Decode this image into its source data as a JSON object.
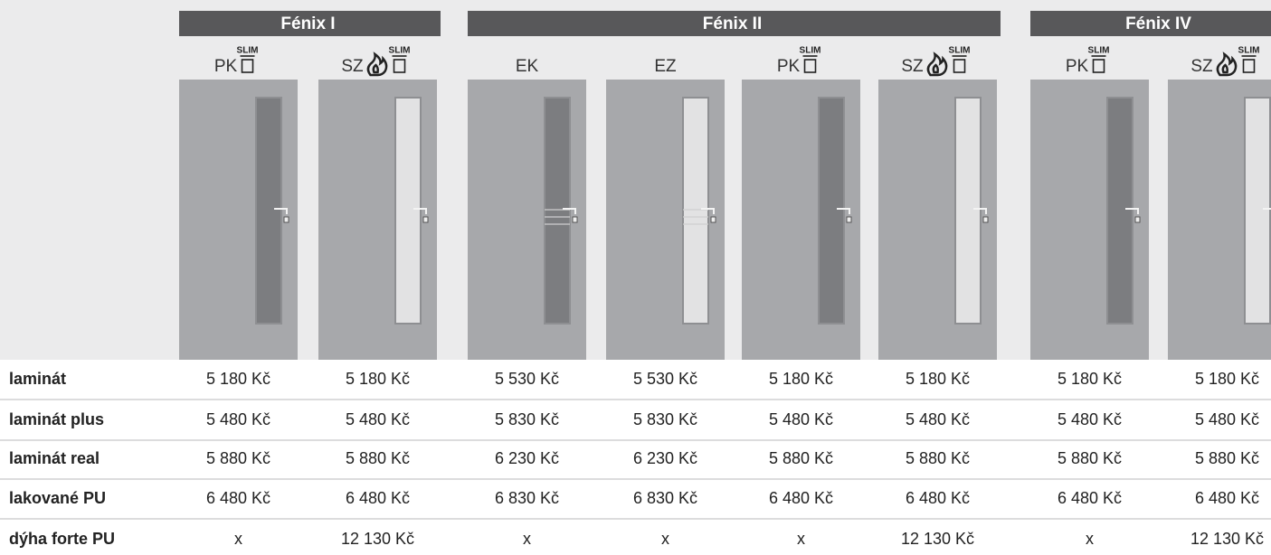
{
  "groups": [
    {
      "title": "Fénix I",
      "columns": [
        {
          "label": "PK",
          "badge": "SLIM",
          "fire": false,
          "glass_color": "#7c7d80"
        },
        {
          "label": "SZ",
          "badge": "SLIM",
          "fire": true,
          "glass_color": "#e2e2e3"
        }
      ]
    },
    {
      "title": "Fénix II",
      "columns": [
        {
          "label": "EK",
          "fire": false,
          "glass_color": "#7c7d80",
          "stripes": true
        },
        {
          "label": "EZ",
          "fire": false,
          "glass_color": "#e2e2e3",
          "stripes": true
        },
        {
          "label": "PK",
          "badge": "SLIM",
          "fire": false,
          "glass_color": "#7c7d80"
        },
        {
          "label": "SZ",
          "badge": "SLIM",
          "fire": true,
          "glass_color": "#e2e2e3"
        }
      ]
    },
    {
      "title": "Fénix IV",
      "columns": [
        {
          "label": "PK",
          "badge": "SLIM",
          "fire": false,
          "glass_color": "#7c7d80"
        },
        {
          "label": "SZ",
          "badge": "SLIM",
          "fire": true,
          "glass_color": "#e2e2e3"
        }
      ]
    }
  ],
  "rows": [
    {
      "name": "laminát",
      "values": [
        "5 180 Kč",
        "5 180 Kč",
        "5 530 Kč",
        "5 530 Kč",
        "5 180 Kč",
        "5 180 Kč",
        "5 180 Kč",
        "5 180 Kč"
      ]
    },
    {
      "name": "laminát plus",
      "values": [
        "5 480 Kč",
        "5 480 Kč",
        "5 830 Kč",
        "5 830 Kč",
        "5 480 Kč",
        "5 480 Kč",
        "5 480 Kč",
        "5 480 Kč"
      ]
    },
    {
      "name": "laminát real",
      "values": [
        "5 880 Kč",
        "5 880 Kč",
        "6 230 Kč",
        "6 230 Kč",
        "5 880 Kč",
        "5 880 Kč",
        "5 880 Kč",
        "5 880 Kč"
      ]
    },
    {
      "name": "lakované PU",
      "values": [
        "6 480 Kč",
        "6 480 Kč",
        "6 830 Kč",
        "6 830 Kč",
        "6 480 Kč",
        "6 480 Kč",
        "6 480 Kč",
        "6 480 Kč"
      ]
    },
    {
      "name": "dýha forte PU",
      "values": [
        "x",
        "12 130 Kč",
        "x",
        "x",
        "x",
        "12 130 Kč",
        "x",
        "12 130 Kč"
      ]
    }
  ]
}
